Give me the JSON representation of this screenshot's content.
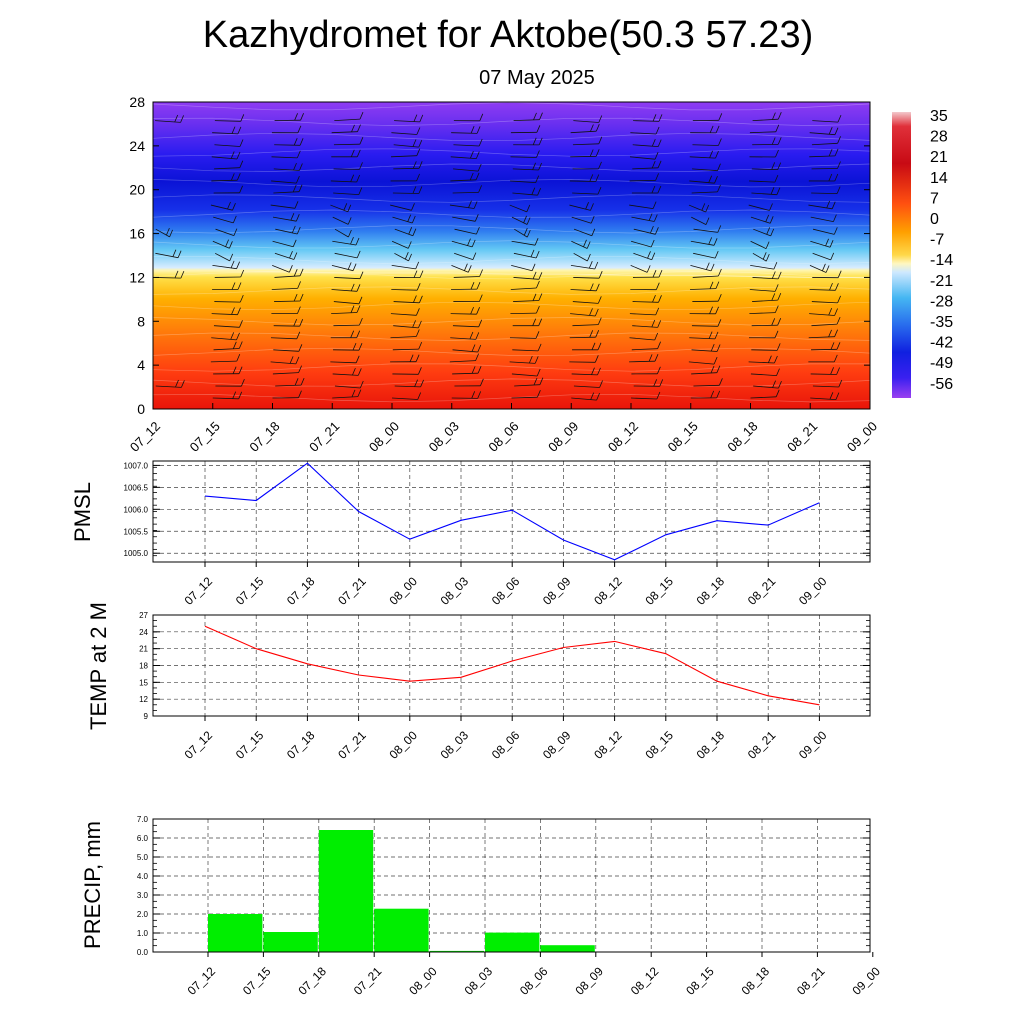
{
  "title": "Kazhydromet for Aktobe(50.3 57.23)",
  "subtitle": "07 May 2025",
  "time_labels": [
    "07_12",
    "07_15",
    "07_18",
    "07_21",
    "08_00",
    "08_03",
    "08_06",
    "08_09",
    "08_12",
    "08_15",
    "08_18",
    "08_21",
    "09_00"
  ],
  "chart_data": [
    {
      "type": "heatmap",
      "name": "temperature-height-section",
      "y_ticks": [
        "0",
        "4",
        "8",
        "12",
        "16",
        "20",
        "24",
        "28"
      ],
      "ylim": [
        0,
        28
      ],
      "colorbar_labels": [
        "35",
        "28",
        "21",
        "14",
        "7",
        "0",
        "-7",
        "-14",
        "-21",
        "-28",
        "-35",
        "-42",
        "-49",
        "-56"
      ],
      "freezing_level": [
        12.6,
        12.6,
        12.5,
        12.4,
        12.4,
        12.4,
        12.3,
        12.3,
        12.2,
        12.2,
        12.1,
        12.0,
        12.0
      ],
      "wind_barbs": true
    },
    {
      "type": "line",
      "ylabel": "PMSL",
      "ylim": [
        1004.8,
        1007.1
      ],
      "y_ticks": [
        "1007.0",
        "1006.5",
        "1006.0",
        "1005.5",
        "1005.0"
      ],
      "y_tick_values": [
        1007.0,
        1006.5,
        1006.0,
        1005.5,
        1005.0
      ],
      "series": [
        {
          "values": [
            1006.3,
            1006.2,
            1007.05,
            1005.95,
            1005.32,
            1005.75,
            1005.98,
            1005.3,
            1004.85,
            1005.42,
            1005.74,
            1005.64,
            1006.15
          ],
          "color": "#0000ff"
        }
      ],
      "grid": true
    },
    {
      "type": "line",
      "ylabel": "TEMP at 2 M",
      "ylim": [
        9,
        27
      ],
      "y_ticks": [
        "27",
        "24",
        "21",
        "18",
        "15",
        "12",
        "9"
      ],
      "y_tick_values": [
        27,
        24,
        21,
        18,
        15,
        12,
        9
      ],
      "series": [
        {
          "values": [
            25.0,
            21.0,
            18.3,
            16.3,
            15.2,
            15.9,
            18.8,
            21.2,
            22.3,
            20.1,
            15.2,
            12.6,
            11.0
          ],
          "color": "#ff0000"
        }
      ],
      "grid": true
    },
    {
      "type": "bar",
      "ylabel": "PRECIP, mm",
      "ylim": [
        0,
        7
      ],
      "y_ticks": [
        "7.0",
        "6.0",
        "5.0",
        "4.0",
        "3.0",
        "2.0",
        "1.0",
        "0.0"
      ],
      "y_tick_values": [
        7,
        6,
        5,
        4,
        3,
        2,
        1,
        0
      ],
      "categories": [
        "07_12",
        "07_15",
        "07_18",
        "07_21",
        "08_00",
        "08_03",
        "08_06",
        "08_09",
        "08_12",
        "08_15",
        "08_18",
        "08_21",
        "09_00"
      ],
      "values": [
        0,
        2.0,
        1.05,
        6.42,
        2.28,
        0.06,
        1.02,
        0.36,
        0,
        0,
        0,
        0,
        0
      ],
      "color": "#00ee00",
      "grid": true
    }
  ]
}
